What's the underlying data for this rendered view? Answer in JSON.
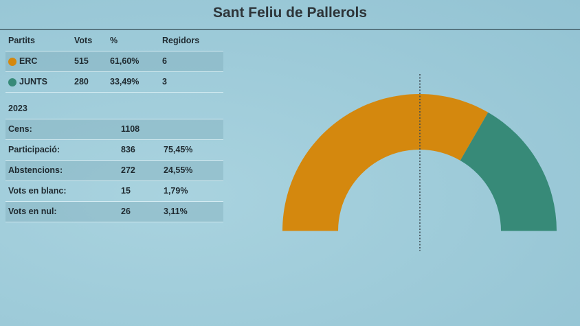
{
  "header": {
    "title": "Sant Feliu de Pallerols"
  },
  "parties_table": {
    "columns": [
      "Partits",
      "Vots",
      "%",
      "Regidors"
    ],
    "rows": [
      {
        "name": "ERC",
        "votes": "515",
        "pct": "61,60%",
        "seats": "6",
        "color": "#d4880e"
      },
      {
        "name": "JUNTS",
        "votes": "280",
        "pct": "33,49%",
        "seats": "3",
        "color": "#378a78"
      }
    ]
  },
  "summary_table": {
    "year": "2023",
    "rows": [
      {
        "label": "Cens:",
        "value": "1108",
        "pct": ""
      },
      {
        "label": "Participació:",
        "value": "836",
        "pct": "75,45%"
      },
      {
        "label": "Abstencions:",
        "value": "272",
        "pct": "24,55%"
      },
      {
        "label": "Vots en blanc:",
        "value": "15",
        "pct": "1,79%"
      },
      {
        "label": "Vots en nul:",
        "value": "26",
        "pct": "3,11%"
      }
    ]
  },
  "chart_data": {
    "type": "pie",
    "subtype": "semicircle-parliament",
    "title": "Sant Feliu de Pallerols",
    "categories": [
      "ERC",
      "JUNTS"
    ],
    "values": [
      6,
      3
    ],
    "colors": [
      "#d4880e",
      "#378a78"
    ],
    "total_seats": 9,
    "majority_line": "dotted vertical at center (50%)"
  }
}
